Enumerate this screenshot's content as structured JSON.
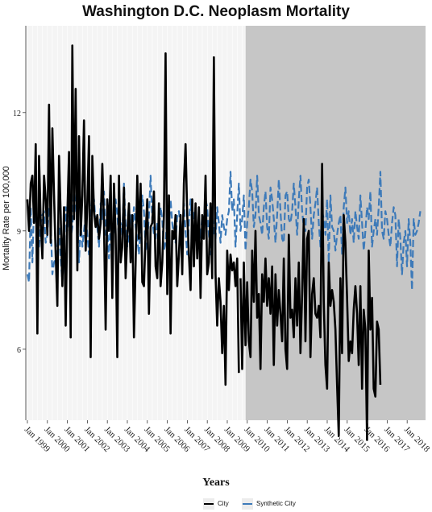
{
  "chart_data": {
    "type": "line",
    "title": "Washington D.C. Neoplasm Mortality",
    "xlabel": "Years",
    "ylabel": "Mortality Rate per 100,000",
    "x_ticks": [
      "Jan 1999",
      "Jan 2000",
      "Jan 2001",
      "Jan 2002",
      "Jan 2003",
      "Jan 2004",
      "Jan 2005",
      "Jan 2006",
      "Jan 2007",
      "Jan 2008",
      "Jan 2009",
      "Jan 2010",
      "Jan 2011",
      "Jan 2012",
      "Jan 2013",
      "Jan 2014",
      "Jan 2015",
      "Jan 2016",
      "Jan 2017",
      "Jan 2018"
    ],
    "y_ticks": [
      6,
      9,
      12
    ],
    "ylim": [
      4.2,
      14.2
    ],
    "xlim": [
      1998.92,
      2018.92
    ],
    "shaded_region": {
      "from": 2009.92,
      "to": 2018.92,
      "color": "#c6c6c6"
    },
    "legend_position": "bottom",
    "colors": {
      "city": "#000000",
      "synthetic": "#3d7ab9",
      "background": "#f4f4f4"
    },
    "series": [
      {
        "name": "City",
        "style": "solid",
        "x_start": 1999.0,
        "x_step": 0.0833,
        "values": [
          9.8,
          9.0,
          10.2,
          10.4,
          9.2,
          11.2,
          6.4,
          10.9,
          9.2,
          8.3,
          10.4,
          9.8,
          8.9,
          12.2,
          8.7,
          11.6,
          9.9,
          8.4,
          7.1,
          10.9,
          9.4,
          7.6,
          9.6,
          6.6,
          9.4,
          11.0,
          6.3,
          13.7,
          9.3,
          12.6,
          8.0,
          11.4,
          8.9,
          9.9,
          11.8,
          8.5,
          9.7,
          11.4,
          5.8,
          10.9,
          9.5,
          9.1,
          9.4,
          8.8,
          9.2,
          10.7,
          9.2,
          6.5,
          9.8,
          9.0,
          10.4,
          7.3,
          10.2,
          8.9,
          5.8,
          10.4,
          8.2,
          8.6,
          10.1,
          7.8,
          8.9,
          9.7,
          8.2,
          9.4,
          6.3,
          8.2,
          10.4,
          8.8,
          10.2,
          7.7,
          7.6,
          8.9,
          9.8,
          6.9,
          9.1,
          9.2,
          10.0,
          8.1,
          7.8,
          9.7,
          7.6,
          8.2,
          9.4,
          13.5,
          7.4,
          9.9,
          6.4,
          9.0,
          8.8,
          9.4,
          7.6,
          8.4,
          9.4,
          7.9,
          10.2,
          11.2,
          9.4,
          8.4,
          7.5,
          9.8,
          8.1,
          9.7,
          8.3,
          9.6,
          7.3,
          9.4,
          8.8,
          10.4,
          7.9,
          8.2,
          9.7,
          7.8,
          13.4,
          7.9,
          6.6,
          7.8,
          7.2,
          5.9,
          7.1,
          5.1,
          8.5,
          7.5,
          8.4,
          8.0,
          8.2,
          7.6,
          8.3,
          5.4,
          7.8,
          5.5,
          8.2,
          6.1,
          7.7,
          6.2,
          5.8,
          8.5,
          7.2,
          9.0,
          6.8,
          7.4,
          5.5,
          7.9,
          7.2,
          8.3,
          7.1,
          7.8,
          6.9,
          8.1,
          5.6,
          7.9,
          6.6,
          7.5,
          6.9,
          6.2,
          8.3,
          6.0,
          5.5,
          8.9,
          6.8,
          7.0,
          6.3,
          7.8,
          6.6,
          8.2,
          5.9,
          7.4,
          9.3,
          6.2,
          8.8,
          9.0,
          5.8,
          7.4,
          7.8,
          6.9,
          6.8,
          7.1,
          6.3,
          10.7,
          7.2,
          5.6,
          5.0,
          8.2,
          7.1,
          7.5,
          7.2,
          6.5,
          5.1,
          3.8,
          7.8,
          5.9,
          9.4,
          8.7,
          7.3,
          5.7,
          6.2,
          5.9,
          7.0,
          7.6,
          6.9,
          5.6,
          7.6,
          5.0,
          7.0,
          6.5,
          3.7,
          8.5,
          6.5,
          7.3,
          5.0,
          4.8,
          6.7,
          6.5,
          5.1
        ],
        "break_at_year": 2009.6
      },
      {
        "name": "Synthetic City",
        "style": "dashed",
        "x_start": 1999.0,
        "x_step": 0.0833,
        "values": [
          7.9,
          7.7,
          9.6,
          8.2,
          9.7,
          9.3,
          8.9,
          8.6,
          9.2,
          9.4,
          9.5,
          8.7,
          8.9,
          9.6,
          9.2,
          7.9,
          8.2,
          8.3,
          8.6,
          9.1,
          8.3,
          7.7,
          8.4,
          9.6,
          9.0,
          9.4,
          8.8,
          9.1,
          10.1,
          9.6,
          9.3,
          8.2,
          9.2,
          8.6,
          9.0,
          9.4,
          8.9,
          8.4,
          9.3,
          9.9,
          9.8,
          9.2,
          9.1,
          8.6,
          9.7,
          9.3,
          10.0,
          8.9,
          9.1,
          8.3,
          9.4,
          8.7,
          9.0,
          9.8,
          9.4,
          8.8,
          9.2,
          8.9,
          10.2,
          9.1,
          8.6,
          8.9,
          9.4,
          9.0,
          9.6,
          9.1,
          8.8,
          8.4,
          9.2,
          9.9,
          9.5,
          8.5,
          8.7,
          9.4,
          10.4,
          9.3,
          8.9,
          8.8,
          9.2,
          9.0,
          9.6,
          9.3,
          8.5,
          8.7,
          9.4,
          9.0,
          9.8,
          9.2,
          8.8,
          8.7,
          9.4,
          9.5,
          9.1,
          8.9,
          9.7,
          9.0,
          8.4,
          9.2,
          9.8,
          9.1,
          9.4,
          9.6,
          8.6,
          9.2,
          8.8,
          9.4,
          9.2,
          9.8,
          9.6,
          8.9,
          8.4,
          9.5,
          9.0,
          8.8,
          9.6,
          9.2,
          8.7,
          9.4,
          9.1,
          8.9,
          9.3,
          9.5,
          10.5,
          9.5,
          9.8,
          8.6,
          9.4,
          10.2,
          9.0,
          9.3,
          9.9,
          8.5,
          9.2,
          9.6,
          10.3,
          10.0,
          9.1,
          9.4,
          10.4,
          9.4,
          9.2,
          8.9,
          9.6,
          10.0,
          9.1,
          8.8,
          10.1,
          9.8,
          9.3,
          8.7,
          9.4,
          10.3,
          9.5,
          8.8,
          8.7,
          9.9,
          10.0,
          9.3,
          9.2,
          9.5,
          10.2,
          9.6,
          8.9,
          9.8,
          10.4,
          9.5,
          9.1,
          9.0,
          10.1,
          10.3,
          9.6,
          8.8,
          9.4,
          9.7,
          10.1,
          9.2,
          8.6,
          9.5,
          9.3,
          8.9,
          9.8,
          8.2,
          9.9,
          9.1,
          9.0,
          8.5,
          8.9,
          9.2,
          9.4,
          8.4,
          9.6,
          10.1,
          9.2,
          9.5,
          8.9,
          9.3,
          8.7,
          9.5,
          9.1,
          8.8,
          9.9,
          9.2,
          8.5,
          9.0,
          9.6,
          9.3,
          10.0,
          8.6,
          9.0,
          9.3,
          8.9,
          9.6,
          10.5,
          9.0,
          8.8,
          9.5,
          9.3,
          8.9,
          8.6,
          9.2,
          9.6,
          9.4,
          8.1,
          9.3,
          8.8,
          7.9,
          8.7,
          9.0,
          8.1,
          9.3,
          8.7,
          7.5,
          9.3,
          8.9,
          9.0,
          9.2,
          9.5
        ]
      }
    ]
  }
}
